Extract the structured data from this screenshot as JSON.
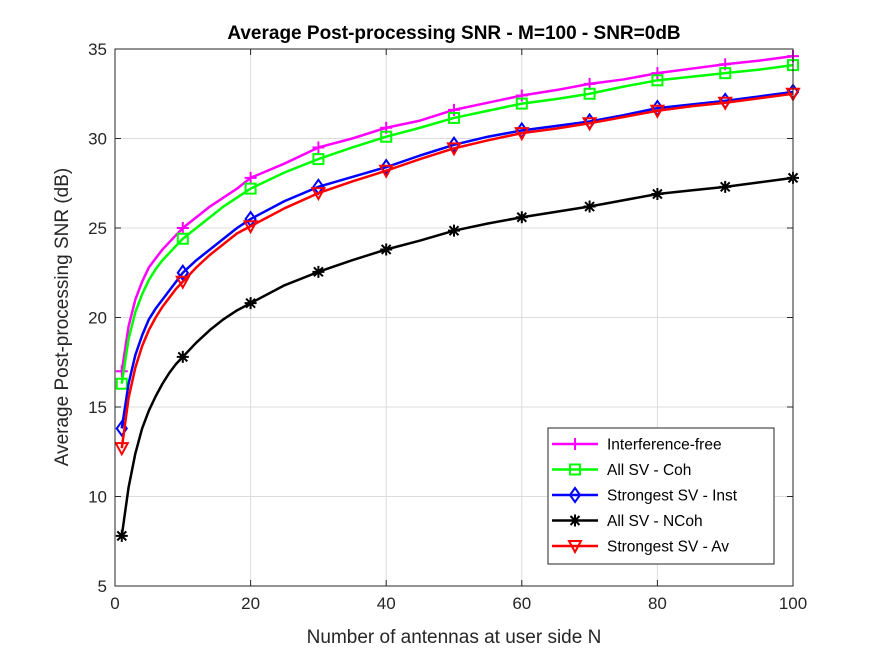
{
  "chart_data": {
    "type": "line",
    "title": "Average Post-processing SNR - M=100 - SNR=0dB",
    "xlabel": "Number of antennas at user side N",
    "ylabel": "Average Post-processing SNR (dB)",
    "xlim": [
      0,
      100
    ],
    "ylim": [
      5,
      35
    ],
    "xticks": [
      0,
      20,
      40,
      60,
      80,
      100
    ],
    "yticks": [
      5,
      10,
      15,
      20,
      25,
      30,
      35
    ],
    "grid": true,
    "legend_position": "bottom-right",
    "series": [
      {
        "name": "Interference-free",
        "color": "#ff00ff",
        "marker": "plus",
        "curve": [
          [
            1,
            17.0
          ],
          [
            2,
            19.5
          ],
          [
            3,
            21.0
          ],
          [
            4,
            22.0
          ],
          [
            5,
            22.8
          ],
          [
            6,
            23.3
          ],
          [
            7,
            23.8
          ],
          [
            8,
            24.2
          ],
          [
            9,
            24.6
          ],
          [
            10,
            25.0
          ],
          [
            12,
            25.6
          ],
          [
            14,
            26.2
          ],
          [
            16,
            26.7
          ],
          [
            18,
            27.2
          ],
          [
            20,
            27.8
          ],
          [
            25,
            28.6
          ],
          [
            30,
            29.5
          ],
          [
            35,
            30.0
          ],
          [
            40,
            30.6
          ],
          [
            45,
            31.0
          ],
          [
            50,
            31.6
          ],
          [
            55,
            32.0
          ],
          [
            60,
            32.4
          ],
          [
            65,
            32.7
          ],
          [
            70,
            33.05
          ],
          [
            75,
            33.3
          ],
          [
            80,
            33.65
          ],
          [
            85,
            33.9
          ],
          [
            90,
            34.15
          ],
          [
            95,
            34.35
          ],
          [
            100,
            34.6
          ]
        ],
        "markers": [
          [
            1,
            17.0
          ],
          [
            10,
            25.0
          ],
          [
            20,
            27.8
          ],
          [
            30,
            29.5
          ],
          [
            40,
            30.6
          ],
          [
            50,
            31.6
          ],
          [
            60,
            32.4
          ],
          [
            70,
            33.05
          ],
          [
            80,
            33.65
          ],
          [
            90,
            34.15
          ],
          [
            100,
            34.6
          ]
        ]
      },
      {
        "name": "All SV - Coh",
        "color": "#00ff00",
        "marker": "square",
        "curve": [
          [
            1,
            16.3
          ],
          [
            2,
            18.8
          ],
          [
            3,
            20.3
          ],
          [
            4,
            21.3
          ],
          [
            5,
            22.1
          ],
          [
            6,
            22.7
          ],
          [
            7,
            23.2
          ],
          [
            8,
            23.6
          ],
          [
            9,
            24.0
          ],
          [
            10,
            24.4
          ],
          [
            12,
            25.0
          ],
          [
            14,
            25.6
          ],
          [
            16,
            26.2
          ],
          [
            18,
            26.7
          ],
          [
            20,
            27.2
          ],
          [
            25,
            28.1
          ],
          [
            30,
            28.85
          ],
          [
            35,
            29.5
          ],
          [
            40,
            30.1
          ],
          [
            45,
            30.6
          ],
          [
            50,
            31.15
          ],
          [
            55,
            31.55
          ],
          [
            60,
            31.95
          ],
          [
            65,
            32.2
          ],
          [
            70,
            32.5
          ],
          [
            75,
            32.9
          ],
          [
            80,
            33.25
          ],
          [
            85,
            33.45
          ],
          [
            90,
            33.65
          ],
          [
            95,
            33.85
          ],
          [
            100,
            34.1
          ]
        ],
        "markers": [
          [
            1,
            16.3
          ],
          [
            10,
            24.4
          ],
          [
            20,
            27.2
          ],
          [
            30,
            28.85
          ],
          [
            40,
            30.1
          ],
          [
            50,
            31.15
          ],
          [
            60,
            31.95
          ],
          [
            70,
            32.5
          ],
          [
            80,
            33.25
          ],
          [
            90,
            33.65
          ],
          [
            100,
            34.1
          ]
        ]
      },
      {
        "name": "Strongest SV - Inst",
        "color": "#0000ff",
        "marker": "diamond",
        "curve": [
          [
            1,
            13.8
          ],
          [
            2,
            16.3
          ],
          [
            3,
            17.9
          ],
          [
            4,
            19.0
          ],
          [
            5,
            19.9
          ],
          [
            6,
            20.5
          ],
          [
            7,
            21.0
          ],
          [
            8,
            21.5
          ],
          [
            9,
            22.0
          ],
          [
            10,
            22.5
          ],
          [
            12,
            23.2
          ],
          [
            14,
            23.8
          ],
          [
            16,
            24.4
          ],
          [
            18,
            25.0
          ],
          [
            20,
            25.5
          ],
          [
            25,
            26.5
          ],
          [
            30,
            27.3
          ],
          [
            35,
            27.85
          ],
          [
            40,
            28.4
          ],
          [
            45,
            29.05
          ],
          [
            50,
            29.65
          ],
          [
            55,
            30.1
          ],
          [
            60,
            30.45
          ],
          [
            65,
            30.7
          ],
          [
            70,
            30.95
          ],
          [
            75,
            31.3
          ],
          [
            80,
            31.7
          ],
          [
            85,
            31.9
          ],
          [
            90,
            32.1
          ],
          [
            95,
            32.35
          ],
          [
            100,
            32.6
          ]
        ],
        "markers": [
          [
            1,
            13.8
          ],
          [
            10,
            22.5
          ],
          [
            20,
            25.5
          ],
          [
            30,
            27.3
          ],
          [
            40,
            28.4
          ],
          [
            50,
            29.65
          ],
          [
            60,
            30.45
          ],
          [
            70,
            30.95
          ],
          [
            80,
            31.7
          ],
          [
            90,
            32.1
          ],
          [
            100,
            32.6
          ]
        ]
      },
      {
        "name": "All SV - NCoh",
        "color": "#000000",
        "marker": "star",
        "curve": [
          [
            1,
            7.8
          ],
          [
            2,
            10.5
          ],
          [
            3,
            12.4
          ],
          [
            4,
            13.8
          ],
          [
            5,
            14.8
          ],
          [
            6,
            15.6
          ],
          [
            7,
            16.3
          ],
          [
            8,
            16.9
          ],
          [
            9,
            17.4
          ],
          [
            10,
            17.8
          ],
          [
            12,
            18.6
          ],
          [
            14,
            19.3
          ],
          [
            16,
            19.9
          ],
          [
            18,
            20.4
          ],
          [
            20,
            20.8
          ],
          [
            25,
            21.8
          ],
          [
            30,
            22.55
          ],
          [
            35,
            23.2
          ],
          [
            40,
            23.8
          ],
          [
            45,
            24.3
          ],
          [
            50,
            24.85
          ],
          [
            55,
            25.25
          ],
          [
            60,
            25.6
          ],
          [
            65,
            25.9
          ],
          [
            70,
            26.2
          ],
          [
            75,
            26.55
          ],
          [
            80,
            26.9
          ],
          [
            85,
            27.1
          ],
          [
            90,
            27.3
          ],
          [
            95,
            27.55
          ],
          [
            100,
            27.8
          ]
        ],
        "markers": [
          [
            1,
            7.8
          ],
          [
            10,
            17.8
          ],
          [
            20,
            20.8
          ],
          [
            30,
            22.55
          ],
          [
            40,
            23.8
          ],
          [
            50,
            24.85
          ],
          [
            60,
            25.6
          ],
          [
            70,
            26.2
          ],
          [
            80,
            26.9
          ],
          [
            90,
            27.3
          ],
          [
            100,
            27.8
          ]
        ]
      },
      {
        "name": "Strongest SV - Av",
        "color": "#ff0000",
        "marker": "triangle-down",
        "curve": [
          [
            1,
            12.7
          ],
          [
            2,
            15.5
          ],
          [
            3,
            17.2
          ],
          [
            4,
            18.4
          ],
          [
            5,
            19.3
          ],
          [
            6,
            20.0
          ],
          [
            7,
            20.6
          ],
          [
            8,
            21.1
          ],
          [
            9,
            21.6
          ],
          [
            10,
            22.0
          ],
          [
            12,
            22.8
          ],
          [
            14,
            23.5
          ],
          [
            16,
            24.1
          ],
          [
            18,
            24.7
          ],
          [
            20,
            25.1
          ],
          [
            25,
            26.1
          ],
          [
            30,
            26.95
          ],
          [
            35,
            27.6
          ],
          [
            40,
            28.2
          ],
          [
            45,
            28.85
          ],
          [
            50,
            29.45
          ],
          [
            55,
            29.9
          ],
          [
            60,
            30.3
          ],
          [
            65,
            30.55
          ],
          [
            70,
            30.85
          ],
          [
            75,
            31.2
          ],
          [
            80,
            31.55
          ],
          [
            85,
            31.8
          ],
          [
            90,
            32.0
          ],
          [
            95,
            32.25
          ],
          [
            100,
            32.5
          ]
        ],
        "markers": [
          [
            1,
            12.7
          ],
          [
            10,
            22.0
          ],
          [
            20,
            25.1
          ],
          [
            30,
            26.95
          ],
          [
            40,
            28.2
          ],
          [
            50,
            29.45
          ],
          [
            60,
            30.3
          ],
          [
            70,
            30.85
          ],
          [
            80,
            31.55
          ],
          [
            90,
            32.0
          ],
          [
            100,
            32.5
          ]
        ]
      }
    ]
  }
}
